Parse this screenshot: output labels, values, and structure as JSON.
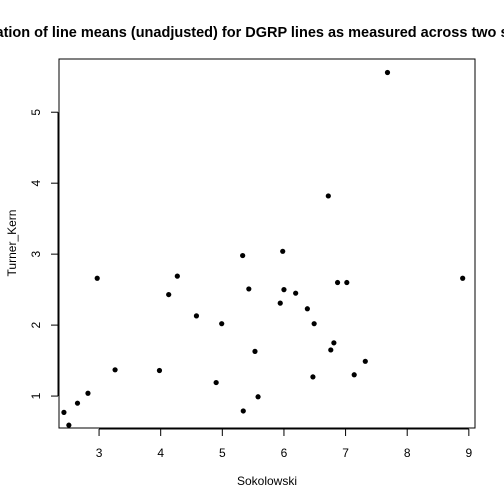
{
  "chart_data": {
    "type": "scatter",
    "title": "Correlation of line means (unadjusted) for DGRP lines as measured across two studies",
    "xlabel": "Sokolowski",
    "ylabel": "Turner_Kern",
    "xlim": [
      2.35,
      9.1
    ],
    "ylim": [
      0.55,
      5.75
    ],
    "x_ticks": [
      3,
      4,
      5,
      6,
      7,
      8,
      9
    ],
    "y_ticks": [
      1,
      2,
      3,
      4,
      5
    ],
    "grid": false,
    "points": [
      {
        "x": 2.43,
        "y": 0.77
      },
      {
        "x": 2.51,
        "y": 0.59
      },
      {
        "x": 2.65,
        "y": 0.9
      },
      {
        "x": 2.82,
        "y": 1.04
      },
      {
        "x": 2.97,
        "y": 2.66
      },
      {
        "x": 3.26,
        "y": 1.37
      },
      {
        "x": 3.98,
        "y": 1.36
      },
      {
        "x": 4.13,
        "y": 2.43
      },
      {
        "x": 4.27,
        "y": 2.69
      },
      {
        "x": 4.58,
        "y": 2.13
      },
      {
        "x": 4.9,
        "y": 1.19
      },
      {
        "x": 4.99,
        "y": 2.02
      },
      {
        "x": 5.33,
        "y": 2.98
      },
      {
        "x": 5.34,
        "y": 0.79
      },
      {
        "x": 5.43,
        "y": 2.51
      },
      {
        "x": 5.53,
        "y": 1.63
      },
      {
        "x": 5.58,
        "y": 0.99
      },
      {
        "x": 5.94,
        "y": 2.31
      },
      {
        "x": 5.98,
        "y": 3.04
      },
      {
        "x": 6.0,
        "y": 2.5
      },
      {
        "x": 6.19,
        "y": 2.45
      },
      {
        "x": 6.38,
        "y": 2.23
      },
      {
        "x": 6.47,
        "y": 1.27
      },
      {
        "x": 6.49,
        "y": 2.02
      },
      {
        "x": 6.72,
        "y": 3.82
      },
      {
        "x": 6.76,
        "y": 1.65
      },
      {
        "x": 6.81,
        "y": 1.75
      },
      {
        "x": 6.87,
        "y": 2.6
      },
      {
        "x": 7.02,
        "y": 2.6
      },
      {
        "x": 7.14,
        "y": 1.3
      },
      {
        "x": 7.32,
        "y": 1.49
      },
      {
        "x": 7.68,
        "y": 5.56
      },
      {
        "x": 8.9,
        "y": 2.66
      }
    ]
  },
  "colors": {
    "point": "#000000",
    "axis": "#000000",
    "background": "#ffffff"
  }
}
